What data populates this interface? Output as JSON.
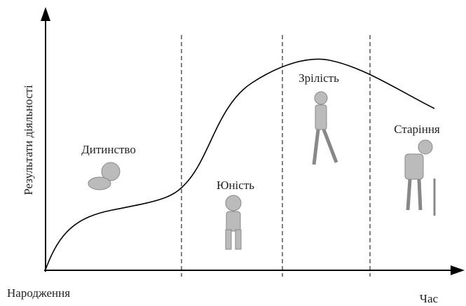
{
  "axes": {
    "y_label": "Результати діяльності",
    "x_start_label": "Народження",
    "x_end_label": "Час"
  },
  "stages": [
    {
      "label": "Дитинство"
    },
    {
      "label": "Юність"
    },
    {
      "label": "Зрілість"
    },
    {
      "label": "Старіння"
    }
  ]
}
